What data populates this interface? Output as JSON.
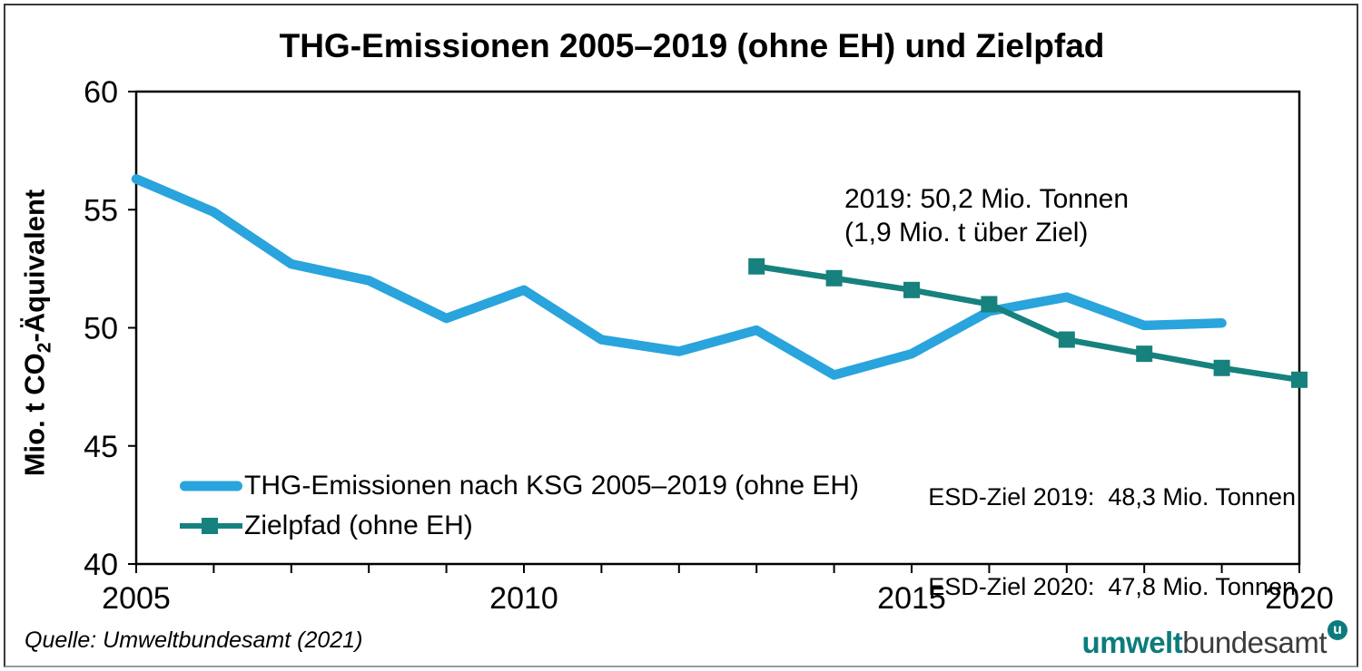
{
  "chart_data": {
    "type": "line",
    "title": "THG-Emissionen 2005–2019 (ohne EH) und Zielpfad",
    "xlabel": "",
    "ylabel": "Mio. t CO2-Äquivalent",
    "xlim": [
      2005,
      2020
    ],
    "ylim": [
      40,
      60
    ],
    "y_ticks": [
      40,
      45,
      50,
      55,
      60
    ],
    "x_tick_labels": [
      2005,
      2010,
      2015,
      2020
    ],
    "x_minor_tick_step": 1,
    "grid": false,
    "legend_position": "inside lower left",
    "series": [
      {
        "name": "THG-Emissionen nach KSG 2005–2019 (ohne EH)",
        "color": "#29A4DC",
        "line_width": 10.5,
        "marker": "none",
        "x": [
          2005,
          2006,
          2007,
          2008,
          2009,
          2010,
          2011,
          2012,
          2013,
          2014,
          2015,
          2016,
          2017,
          2018,
          2019
        ],
        "values": [
          56.3,
          54.9,
          52.7,
          52.0,
          50.4,
          51.6,
          49.5,
          49.0,
          49.9,
          48.0,
          48.9,
          50.7,
          51.3,
          50.1,
          50.2
        ]
      },
      {
        "name": "Zielpfad (ohne EH)",
        "color": "#17817D",
        "line_width": 6.5,
        "marker": "square",
        "marker_size": 18,
        "x": [
          2013,
          2014,
          2015,
          2016,
          2017,
          2018,
          2019,
          2020
        ],
        "values": [
          52.6,
          52.1,
          51.6,
          51.0,
          49.5,
          48.9,
          48.3,
          47.8
        ]
      }
    ],
    "annotations": [
      {
        "lines": [
          "2019: 50,2 Mio. Tonnen",
          "(1,9 Mio. t über Ziel)"
        ]
      },
      {
        "lines": [
          "ESD-Ziel 2019:  48,3 Mio. Tonnen",
          "ESD-Ziel 2020:  47,8 Mio. Tonnen"
        ]
      }
    ]
  },
  "y_axis_display": {
    "pre": "Mio. t CO",
    "sub": "2",
    "post": "-Äquivalent"
  },
  "source": "Quelle: Umweltbundesamt (2021)",
  "logo": {
    "part1": "umwelt",
    "part2": "bundesamt",
    "badge": "u",
    "teal": "#0D7B7B",
    "gray": "#3C3C3B"
  },
  "axis_color": "#000000"
}
